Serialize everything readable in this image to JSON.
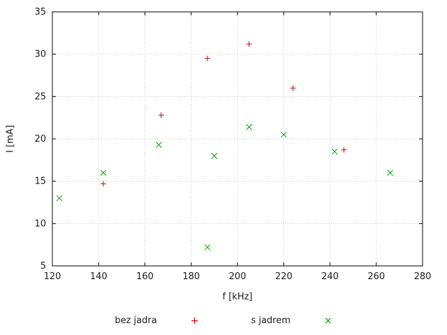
{
  "chart_data": {
    "type": "scatter",
    "title": "",
    "xlabel": "f [kHz]",
    "ylabel": "I [mA]",
    "xlim": [
      120,
      280
    ],
    "ylim": [
      5,
      35
    ],
    "xticks": [
      120,
      140,
      160,
      180,
      200,
      220,
      240,
      260,
      280
    ],
    "yticks": [
      5,
      10,
      15,
      20,
      25,
      30,
      35
    ],
    "grid": true,
    "legend_position": "bottom",
    "series": [
      {
        "name": "bez jadra",
        "marker": "plus",
        "marker_glyph": "+",
        "color": "#cc0000",
        "points": [
          [
            142,
            14.7
          ],
          [
            167,
            22.8
          ],
          [
            187,
            29.5
          ],
          [
            205,
            31.2
          ],
          [
            224,
            26.0
          ],
          [
            246,
            18.7
          ]
        ]
      },
      {
        "name": "s jadrem",
        "marker": "cross",
        "marker_glyph": "×",
        "color": "#00a000",
        "points": [
          [
            123,
            13.0
          ],
          [
            142,
            16.0
          ],
          [
            166,
            19.3
          ],
          [
            187,
            7.2
          ],
          [
            190,
            18.0
          ],
          [
            205,
            21.4
          ],
          [
            220,
            20.5
          ],
          [
            242,
            18.5
          ],
          [
            266,
            16.0
          ]
        ]
      }
    ],
    "style": {
      "grid_color": "#c8c8c8",
      "border_color": "#000000",
      "text_color": "#1a1a1a"
    }
  }
}
